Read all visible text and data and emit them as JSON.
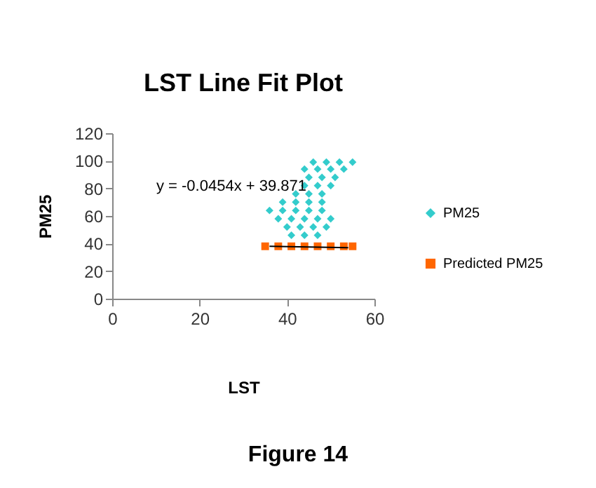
{
  "chart_data": {
    "type": "scatter",
    "title": "LST Line Fit  Plot",
    "xlabel": "LST",
    "ylabel": "PM25",
    "xlim": [
      0,
      60
    ],
    "xticks": [
      0,
      20,
      40,
      60
    ],
    "ylim": [
      0,
      120
    ],
    "yticks": [
      0,
      20,
      40,
      60,
      80,
      100,
      120
    ],
    "grid": false,
    "legend": "right",
    "annotations": [
      "y = -0.0454x + 39.871",
      "Figure 14"
    ],
    "series": [
      {
        "name": "PM25",
        "color": "#33cccc",
        "marker": "diamond",
        "x": [
          46,
          49,
          52,
          55,
          44,
          47,
          50,
          53,
          45,
          48,
          51,
          44,
          47,
          50,
          42,
          45,
          48,
          39,
          42,
          45,
          48,
          36,
          39,
          42,
          45,
          48,
          38,
          41,
          44,
          47,
          50,
          40,
          43,
          46,
          49,
          41,
          44,
          47
        ],
        "values": [
          99,
          99,
          99,
          99,
          94,
          94,
          94,
          94,
          88,
          88,
          88,
          82,
          82,
          82,
          76,
          76,
          76,
          70,
          70,
          70,
          70,
          64,
          64,
          64,
          64,
          64,
          58,
          58,
          58,
          58,
          58,
          52,
          52,
          52,
          52,
          46,
          46,
          46
        ]
      },
      {
        "name": "Predicted PM25",
        "color": "#ff6600",
        "marker": "square",
        "x": [
          35,
          38,
          41,
          44,
          47,
          50,
          53,
          55
        ],
        "values": [
          38,
          38,
          38,
          38,
          38,
          38,
          38,
          38
        ]
      },
      {
        "type": "line",
        "color": "#000000",
        "x": [
          36,
          54
        ],
        "values": [
          38,
          37
        ]
      }
    ]
  }
}
